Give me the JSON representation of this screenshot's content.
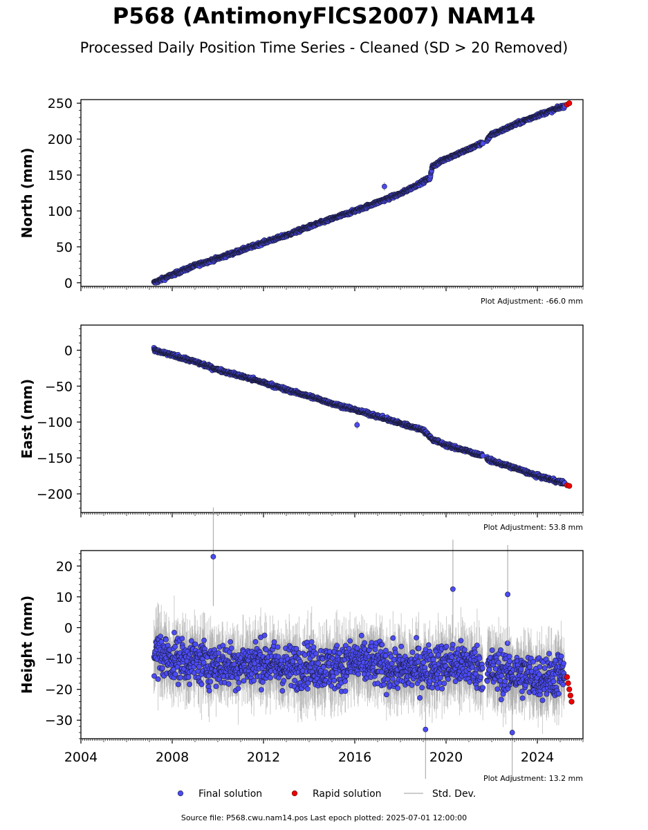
{
  "title": "P568 (AntimonyFlCS2007) NAM14",
  "subtitle": "Processed Daily Position Time Series - Cleaned (SD > 20 Removed)",
  "source_text": "Source file: P568.cwu.nam14.pos  Last epoch plotted: 2025-07-01 12:00:00",
  "legend": {
    "final_label": "Final solution",
    "rapid_label": "Rapid solution",
    "std_label": "Std. Dev."
  },
  "colors": {
    "final": "#4b4bf5",
    "rapid": "#ee0000",
    "std": "#a0a0a0",
    "edge": "#1a1a33"
  },
  "chart_data": [
    {
      "type": "scatter",
      "ylabel": "North (mm)",
      "xlim": [
        2004,
        2026
      ],
      "ylim": [
        -5,
        255
      ],
      "yticks": [
        0,
        50,
        100,
        150,
        200,
        250
      ],
      "adjustment": "Plot Adjustment: -66.0 mm",
      "series": [
        {
          "name": "Final solution",
          "x": [
            2007.2,
            2008.0,
            2009.0,
            2010.0,
            2011.0,
            2012.0,
            2013.0,
            2014.0,
            2015.0,
            2016.0,
            2017.0,
            2018.0,
            2019.3,
            2019.4,
            2020.0,
            2021.0,
            2021.6,
            2021.8,
            2022.0,
            2023.0,
            2024.0,
            2025.2
          ],
          "y": [
            0,
            11,
            24,
            34,
            45,
            56,
            66,
            78,
            89,
            100,
            112,
            124,
            146,
            162,
            173,
            186,
            195,
            199,
            206,
            220,
            233,
            246
          ]
        },
        {
          "name": "Rapid solution",
          "x": [
            2025.3,
            2025.4
          ],
          "y": [
            248,
            250
          ]
        }
      ],
      "outliers": [
        {
          "x": 2017.3,
          "y": 134
        }
      ]
    },
    {
      "type": "scatter",
      "ylabel": "East (mm)",
      "xlim": [
        2004,
        2026
      ],
      "ylim": [
        -226,
        35
      ],
      "yticks": [
        0,
        -50,
        -100,
        -150,
        -200
      ],
      "adjustment": "Plot Adjustment: 53.8 mm",
      "series": [
        {
          "name": "Final solution",
          "x": [
            2007.2,
            2008.0,
            2009.0,
            2010.0,
            2011.0,
            2012.0,
            2013.0,
            2014.0,
            2015.0,
            2016.0,
            2017.0,
            2018.0,
            2019.0,
            2019.4,
            2020.0,
            2021.0,
            2021.7,
            2021.9,
            2023.0,
            2024.0,
            2025.2
          ],
          "y": [
            0,
            -7,
            -16,
            -27,
            -36,
            -45,
            -55,
            -64,
            -74,
            -83,
            -92,
            -102,
            -111,
            -124,
            -132,
            -141,
            -148,
            -153,
            -164,
            -175,
            -185
          ]
        },
        {
          "name": "Rapid solution",
          "x": [
            2025.3,
            2025.4
          ],
          "y": [
            -188,
            -189
          ]
        }
      ],
      "outliers": [
        {
          "x": 2016.1,
          "y": -104
        }
      ]
    },
    {
      "type": "scatter",
      "ylabel": "Height (mm)",
      "xlim": [
        2004,
        2026
      ],
      "ylim": [
        -36,
        25
      ],
      "yticks": [
        20,
        10,
        0,
        -10,
        -20,
        -30
      ],
      "xticks": [
        2004,
        2008,
        2012,
        2016,
        2020,
        2024
      ],
      "adjustment": "Plot Adjustment: 13.2 mm",
      "series": [
        {
          "name": "Final solution",
          "x": [
            2007.2,
            2008.0,
            2009.0,
            2010.0,
            2011.0,
            2012.0,
            2013.0,
            2014.0,
            2015.0,
            2016.0,
            2017.0,
            2018.0,
            2019.0,
            2020.0,
            2021.0,
            2022.0,
            2023.0,
            2024.0,
            2025.2
          ],
          "y": [
            -8,
            -10,
            -11,
            -12,
            -12,
            -11,
            -13,
            -12,
            -13,
            -11,
            -12,
            -14,
            -13,
            -12,
            -12,
            -14,
            -15,
            -16,
            -15
          ]
        },
        {
          "name": "Rapid solution",
          "x": [
            2025.3,
            2025.35,
            2025.4,
            2025.45,
            2025.5
          ],
          "y": [
            -16,
            -18,
            -20,
            -22,
            -24
          ]
        }
      ],
      "outliers": [
        {
          "x": 2009.8,
          "y": 23
        },
        {
          "x": 2020.3,
          "y": 12.5
        },
        {
          "x": 2022.7,
          "y": 10.8
        },
        {
          "x": 2019.1,
          "y": -33
        },
        {
          "x": 2022.9,
          "y": -34
        }
      ]
    }
  ]
}
